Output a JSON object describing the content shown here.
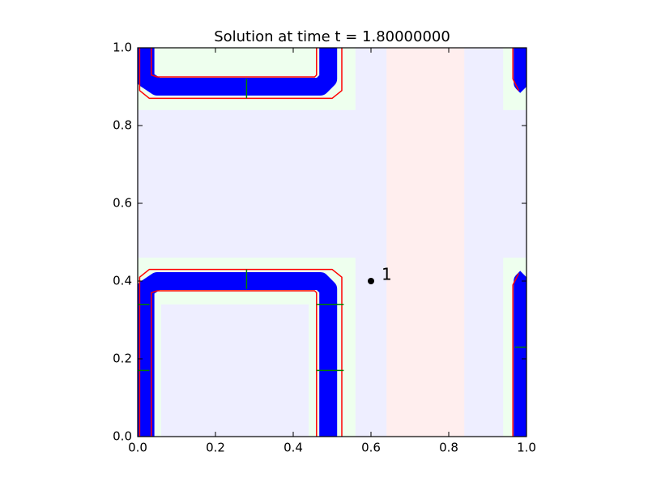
{
  "chart_data": {
    "type": "contour",
    "title": "Solution at time t =      1.80000000",
    "xlim": [
      0,
      1
    ],
    "ylim": [
      0,
      1
    ],
    "xticks": [
      {
        "value": 0,
        "label": "0.0"
      },
      0.2,
      0.4,
      0.6,
      0.8,
      {
        "value": 1,
        "label": "1.0"
      }
    ],
    "yticks": [
      {
        "value": 0,
        "label": "0.0"
      },
      0.2,
      0.4,
      0.6,
      0.8,
      {
        "value": 1,
        "label": "1.0"
      }
    ],
    "background": "#eeeeff",
    "regions": [
      {
        "x": [
          0.64,
          0.84
        ],
        "y": [
          0,
          1
        ],
        "color": "#ffeeee"
      },
      {
        "x": [
          0,
          0.56
        ],
        "y": [
          0.84,
          1
        ],
        "color": "#eeffee"
      },
      {
        "x": [
          0,
          0.56
        ],
        "y": [
          0,
          0.46
        ],
        "color": "#eeffee"
      },
      {
        "x": [
          0.94,
          1
        ],
        "y": [
          0.84,
          1
        ],
        "color": "#eeffee"
      },
      {
        "x": [
          0.94,
          1
        ],
        "y": [
          0,
          0.46
        ],
        "color": "#eeffee"
      },
      {
        "x": [
          0.06,
          0.44
        ],
        "y": [
          0,
          0.34
        ],
        "color": "#eeeeff"
      }
    ],
    "contour_bands": [
      {
        "color": "#0000ff",
        "x": [
          0.02,
          0.02,
          0.05,
          0.47,
          0.49,
          0.49
        ],
        "y": [
          0,
          0.38,
          0.4,
          0.4,
          0.38,
          0
        ]
      },
      {
        "color": "#0000ff",
        "x": [
          0.02,
          0.02,
          0.05,
          0.47,
          0.49,
          0.49
        ],
        "y": [
          1,
          0.92,
          0.9,
          0.9,
          0.92,
          1
        ]
      },
      {
        "color": "#0000ff",
        "x": [
          0.99,
          0.99,
          1.0
        ],
        "y": [
          0,
          0.4,
          0.41
        ]
      },
      {
        "color": "#0000ff",
        "x": [
          0.99,
          0.99,
          1.0
        ],
        "y": [
          1,
          0.91,
          0.9
        ]
      }
    ],
    "contour_lines": [
      {
        "color": "#ff0000",
        "x": [
          0.005,
          0.005,
          0.03,
          0.5,
          0.525,
          0.525
        ],
        "y": [
          0,
          0.41,
          0.43,
          0.43,
          0.41,
          0
        ]
      },
      {
        "color": "#ff0000",
        "x": [
          0.035,
          0.035,
          0.05,
          0.455,
          0.46,
          0.46
        ],
        "y": [
          0,
          0.37,
          0.375,
          0.375,
          0.37,
          0
        ]
      },
      {
        "color": "#ff0000",
        "x": [
          0.005,
          0.005,
          0.03,
          0.5,
          0.525,
          0.525
        ],
        "y": [
          1,
          0.89,
          0.87,
          0.87,
          0.89,
          1
        ]
      },
      {
        "color": "#ff0000",
        "x": [
          0.035,
          0.035,
          0.05,
          0.455,
          0.46,
          0.46
        ],
        "y": [
          1,
          0.93,
          0.925,
          0.925,
          0.93,
          1
        ]
      },
      {
        "color": "#ff0000",
        "x": [
          0.965,
          0.965,
          0.98
        ],
        "y": [
          0,
          0.39,
          0.42
        ]
      },
      {
        "color": "#ff0000",
        "x": [
          0.965,
          0.965,
          0.98
        ],
        "y": [
          1,
          0.92,
          0.89
        ]
      },
      {
        "color": "#008000",
        "x": [
          0.28,
          0.28
        ],
        "y": [
          0.38,
          0.43
        ]
      },
      {
        "color": "#008000",
        "x": [
          0.28,
          0.28
        ],
        "y": [
          0.87,
          0.92
        ]
      },
      {
        "color": "#008000",
        "x": [
          0.0,
          0.03
        ],
        "y": [
          0.34,
          0.34
        ]
      },
      {
        "color": "#008000",
        "x": [
          0.0,
          0.03
        ],
        "y": [
          0.17,
          0.17
        ]
      },
      {
        "color": "#008000",
        "x": [
          0.46,
          0.53
        ],
        "y": [
          0.34,
          0.34
        ]
      },
      {
        "color": "#008000",
        "x": [
          0.46,
          0.53
        ],
        "y": [
          0.17,
          0.17
        ]
      },
      {
        "color": "#008000",
        "x": [
          0.97,
          1.0
        ],
        "y": [
          0.23,
          0.23
        ]
      }
    ],
    "points": [
      {
        "x": 0.6,
        "y": 0.4,
        "label": "1",
        "color": "#000000"
      }
    ]
  }
}
